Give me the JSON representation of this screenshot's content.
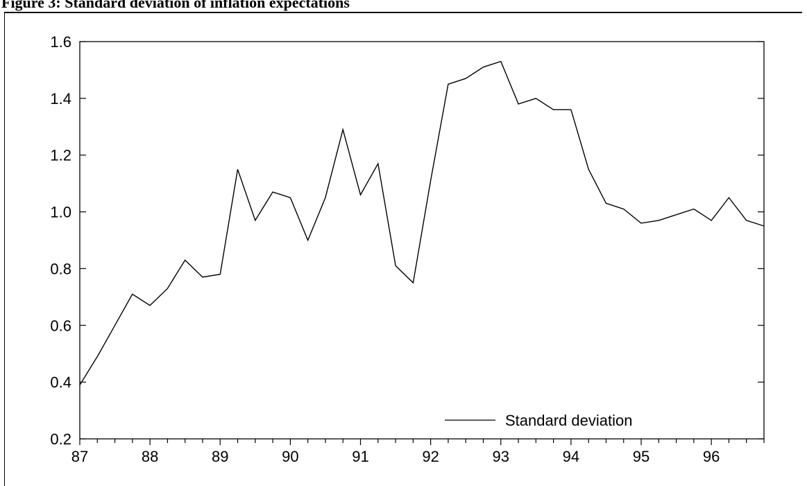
{
  "figure": {
    "title": "Figure 3:  Standard deviation of inflation expectations"
  },
  "chart_data": {
    "type": "line",
    "title": "Figure 3:  Standard deviation of inflation expectations",
    "xlabel": "",
    "ylabel": "",
    "ylim": [
      0.2,
      1.6
    ],
    "xlim": [
      1987.0,
      1996.75
    ],
    "y_ticks": [
      "0.2",
      "0.4",
      "0.6",
      "0.8",
      "1.0",
      "1.2",
      "1.4",
      "1.6"
    ],
    "x_ticks": [
      "87",
      "88",
      "89",
      "90",
      "91",
      "92",
      "93",
      "94",
      "95",
      "96"
    ],
    "grid": false,
    "legend_position": "bottom-right",
    "series": [
      {
        "name": "Standard deviation",
        "color": "#000000",
        "x": [
          1987.0,
          1987.25,
          1987.5,
          1987.75,
          1988.0,
          1988.25,
          1988.5,
          1988.75,
          1989.0,
          1989.25,
          1989.5,
          1989.75,
          1990.0,
          1990.25,
          1990.5,
          1990.75,
          1991.0,
          1991.25,
          1991.5,
          1991.75,
          1992.0,
          1992.25,
          1992.5,
          1992.75,
          1993.0,
          1993.25,
          1993.5,
          1993.75,
          1994.0,
          1994.25,
          1994.5,
          1994.75,
          1995.0,
          1995.25,
          1995.5,
          1995.75,
          1996.0,
          1996.25,
          1996.5,
          1996.75
        ],
        "values": [
          0.39,
          0.49,
          0.6,
          0.71,
          0.67,
          0.73,
          0.83,
          0.77,
          0.78,
          1.15,
          0.97,
          1.07,
          1.05,
          0.9,
          1.05,
          1.29,
          1.06,
          1.17,
          0.81,
          0.75,
          1.11,
          1.45,
          1.47,
          1.51,
          1.53,
          1.38,
          1.4,
          1.36,
          1.36,
          1.15,
          1.03,
          1.01,
          0.96,
          0.97,
          0.99,
          1.01,
          0.97,
          1.05,
          0.97,
          0.95
        ]
      }
    ]
  }
}
